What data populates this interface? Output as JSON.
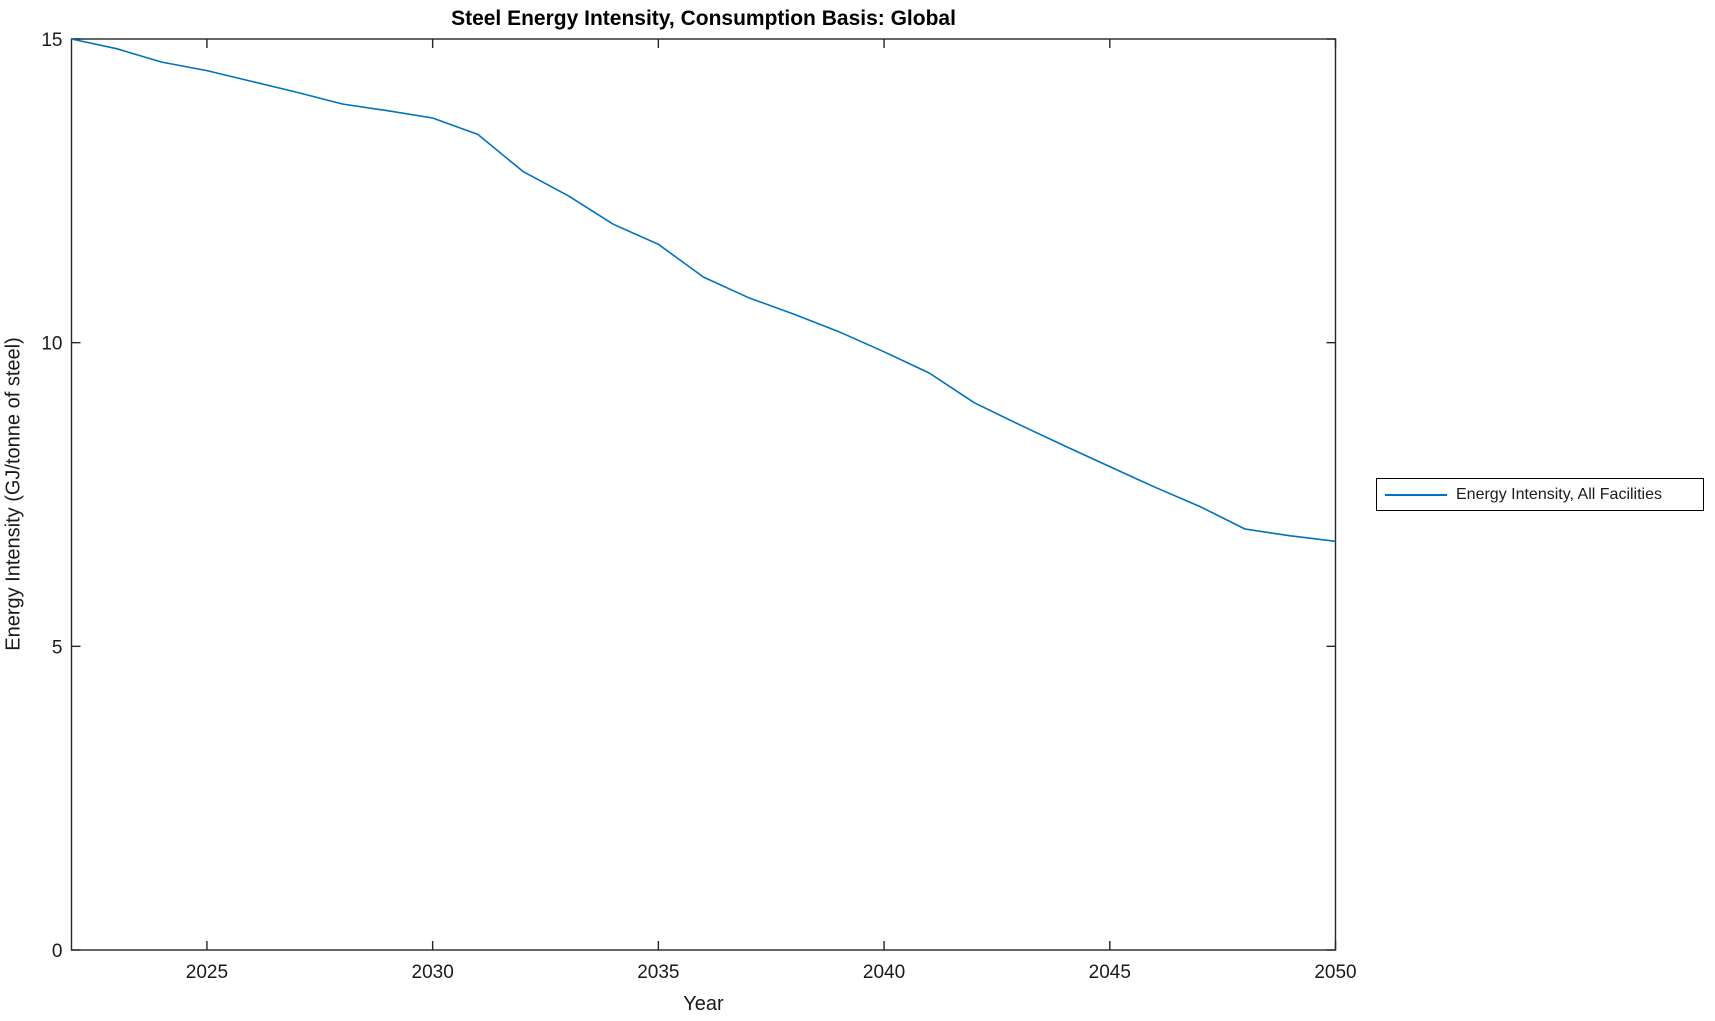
{
  "chart_data": {
    "type": "line",
    "title": "Steel Energy Intensity, Consumption Basis: Global",
    "xlabel": "Year",
    "ylabel": "Energy Intensity (GJ/tonne of steel)",
    "xlim": [
      2022,
      2050
    ],
    "ylim": [
      0,
      15
    ],
    "xticks": [
      2025,
      2030,
      2035,
      2040,
      2045,
      2050
    ],
    "yticks": [
      0,
      5,
      10,
      15
    ],
    "grid": false,
    "legend_position": "outside-right",
    "axis_color": "#262626",
    "series": [
      {
        "name": "Energy Intensity, All Facilities",
        "color": "#0072BD",
        "x": [
          2022,
          2023,
          2024,
          2025,
          2026,
          2027,
          2028,
          2029,
          2030,
          2031,
          2032,
          2033,
          2034,
          2035,
          2036,
          2037,
          2038,
          2039,
          2040,
          2041,
          2042,
          2043,
          2044,
          2045,
          2046,
          2047,
          2048,
          2049,
          2050
        ],
        "values": [
          15.0,
          14.84,
          14.62,
          14.48,
          14.3,
          14.12,
          13.93,
          13.82,
          13.7,
          13.43,
          12.82,
          12.42,
          11.95,
          11.62,
          11.08,
          10.74,
          10.47,
          10.18,
          9.85,
          9.5,
          9.01,
          8.65,
          8.3,
          7.96,
          7.62,
          7.3,
          6.93,
          6.82,
          6.73
        ]
      }
    ]
  },
  "legend": {
    "entries": [
      {
        "label": "Energy Intensity, All Facilities",
        "color": "#0072BD"
      }
    ]
  }
}
